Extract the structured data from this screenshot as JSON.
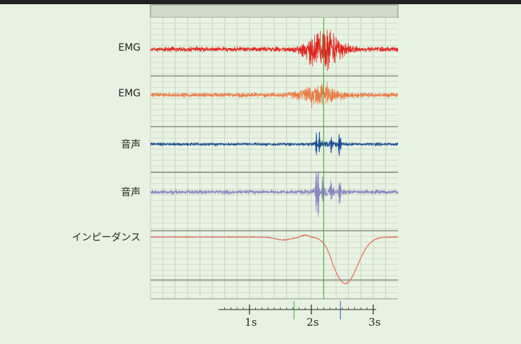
{
  "chart_data": {
    "type": "line",
    "title": "",
    "channels": [
      {
        "name": "EMG",
        "color": "#e0231e",
        "noise": 2.6,
        "bursts": [
          {
            "t": 2.2,
            "w": 0.28,
            "a": 24
          }
        ],
        "spikes": []
      },
      {
        "name": "EMG",
        "color": "#e87d45",
        "noise": 2.6,
        "bursts": [
          {
            "t": 2.15,
            "w": 0.3,
            "a": 12
          }
        ],
        "spikes": []
      },
      {
        "name": "音声",
        "color": "#1d4e96",
        "noise": 1.8,
        "bursts": [
          {
            "t": 2.25,
            "w": 0.2,
            "a": 3
          }
        ],
        "spikes": [
          {
            "t": 2.08,
            "a": 16
          },
          {
            "t": 2.13,
            "a": -14
          },
          {
            "t": 2.32,
            "a": 11
          },
          {
            "t": 2.45,
            "a": 18
          },
          {
            "t": 2.47,
            "a": -10
          }
        ]
      },
      {
        "name": "音声",
        "color": "#8a86c2",
        "noise": 2.4,
        "bursts": [
          {
            "t": 2.25,
            "w": 0.25,
            "a": 4
          }
        ],
        "spikes": [
          {
            "t": 2.08,
            "a": -30
          },
          {
            "t": 2.11,
            "a": 38
          },
          {
            "t": 2.18,
            "a": -18
          },
          {
            "t": 2.32,
            "a": 14
          },
          {
            "t": 2.45,
            "a": 16
          },
          {
            "t": 2.47,
            "a": -12
          }
        ]
      },
      {
        "name": "インピーダンス",
        "color": "#e06a60",
        "type": "impedance"
      }
    ],
    "x_ticks": [
      "1s",
      "2s",
      "3s"
    ],
    "xlim": [
      -0.6,
      3.4
    ],
    "markers": [
      {
        "t": 2.2,
        "color": "#33aa33"
      },
      {
        "t": 1.72,
        "color": "#33aa33"
      },
      {
        "t": 2.47,
        "color": "#3355aa"
      }
    ],
    "grid": true
  }
}
